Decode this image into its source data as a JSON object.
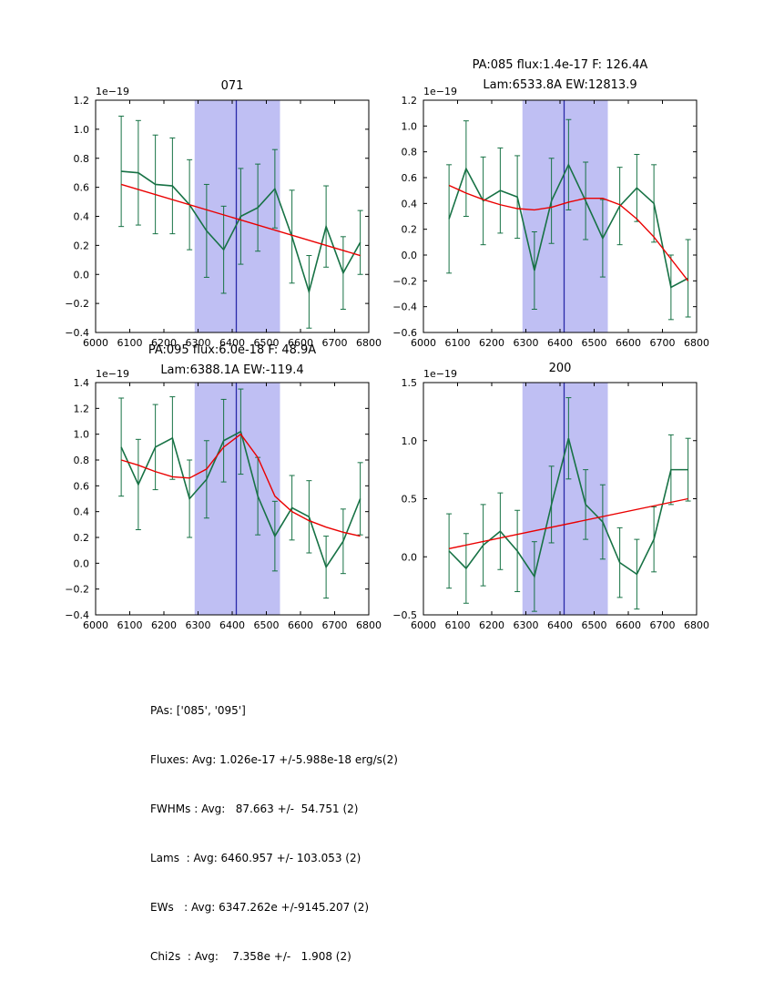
{
  "figure": {
    "background": "#ffffff",
    "colors": {
      "data": "#177245",
      "fit": "#ea0000",
      "band": "#8080e8",
      "band_opacity": 0.5,
      "center_line": "#2a2aa8",
      "axis": "#000000"
    }
  },
  "summary": {
    "lines": [
      "PAs: ['085', '095']",
      "Fluxes: Avg: 1.026e-17 +/-5.988e-18 erg/s(2)",
      "FWHMs : Avg:   87.663 +/-  54.751 (2)",
      "Lams  : Avg: 6460.957 +/- 103.053 (2)",
      "EWs   : Avg: 6347.262e +/-9145.207 (2)",
      "Chi2s  : Avg:    7.358e +/-   1.908 (2)"
    ]
  },
  "chart_data": [
    {
      "type": "line",
      "title_lines": [
        "071"
      ],
      "offset_text": "1e−19",
      "xlim": [
        6000,
        6800
      ],
      "ylim": [
        -0.4,
        1.2
      ],
      "xticks": [
        6000,
        6100,
        6200,
        6300,
        6400,
        6500,
        6600,
        6700,
        6800
      ],
      "yticks": [
        -0.4,
        -0.2,
        0,
        0.2,
        0.4,
        0.6,
        0.8,
        1.0,
        1.2
      ],
      "band": [
        6290,
        6540
      ],
      "center_line_x": 6412,
      "x": [
        6075,
        6125,
        6175,
        6225,
        6275,
        6325,
        6375,
        6425,
        6475,
        6525,
        6575,
        6625,
        6675,
        6725,
        6775
      ],
      "y": [
        0.71,
        0.7,
        0.62,
        0.61,
        0.48,
        0.3,
        0.17,
        0.4,
        0.46,
        0.59,
        0.26,
        -0.12,
        0.33,
        0.01,
        0.22
      ],
      "yerr": [
        0.38,
        0.36,
        0.34,
        0.33,
        0.31,
        0.32,
        0.3,
        0.33,
        0.3,
        0.27,
        0.32,
        0.25,
        0.28,
        0.25,
        0.22
      ],
      "fit_x": [
        6075,
        6775
      ],
      "fit_y": [
        0.62,
        0.13
      ]
    },
    {
      "type": "line",
      "title_lines": [
        "PA:085 flux:1.4e-17 F: 126.4A",
        "Lam:6533.8A EW:12813.9"
      ],
      "offset_text": "1e−19",
      "xlim": [
        6000,
        6800
      ],
      "ylim": [
        -0.6,
        1.2
      ],
      "xticks": [
        6000,
        6100,
        6200,
        6300,
        6400,
        6500,
        6600,
        6700,
        6800
      ],
      "yticks": [
        -0.6,
        -0.4,
        -0.2,
        0,
        0.2,
        0.4,
        0.6,
        0.8,
        1.0,
        1.2
      ],
      "band": [
        6290,
        6540
      ],
      "center_line_x": 6412,
      "x": [
        6075,
        6125,
        6175,
        6225,
        6275,
        6325,
        6375,
        6425,
        6475,
        6525,
        6575,
        6625,
        6675,
        6725,
        6775
      ],
      "y": [
        0.28,
        0.67,
        0.42,
        0.5,
        0.45,
        -0.12,
        0.42,
        0.7,
        0.42,
        0.13,
        0.38,
        0.52,
        0.4,
        -0.25,
        -0.18
      ],
      "yerr": [
        0.42,
        0.37,
        0.34,
        0.33,
        0.32,
        0.3,
        0.33,
        0.35,
        0.3,
        0.3,
        0.3,
        0.26,
        0.3,
        0.25,
        0.3
      ],
      "fit_x": [
        6075,
        6125,
        6175,
        6225,
        6275,
        6325,
        6375,
        6425,
        6475,
        6525,
        6575,
        6625,
        6675,
        6725,
        6775
      ],
      "fit_y": [
        0.54,
        0.48,
        0.43,
        0.39,
        0.36,
        0.35,
        0.37,
        0.41,
        0.44,
        0.44,
        0.39,
        0.28,
        0.14,
        -0.03,
        -0.2
      ]
    },
    {
      "type": "line",
      "title_lines": [
        "PA:095 flux:6.0e-18 F: 48.9A",
        "Lam:6388.1A EW:-119.4"
      ],
      "offset_text": "1e−19",
      "xlim": [
        6000,
        6800
      ],
      "ylim": [
        -0.4,
        1.4
      ],
      "xticks": [
        6000,
        6100,
        6200,
        6300,
        6400,
        6500,
        6600,
        6700,
        6800
      ],
      "yticks": [
        -0.4,
        -0.2,
        0,
        0.2,
        0.4,
        0.6,
        0.8,
        1.0,
        1.2,
        1.4
      ],
      "band": [
        6290,
        6540
      ],
      "center_line_x": 6412,
      "x": [
        6075,
        6125,
        6175,
        6225,
        6275,
        6325,
        6375,
        6425,
        6475,
        6525,
        6575,
        6625,
        6675,
        6725,
        6775
      ],
      "y": [
        0.9,
        0.61,
        0.9,
        0.97,
        0.5,
        0.65,
        0.95,
        1.02,
        0.52,
        0.21,
        0.43,
        0.36,
        -0.03,
        0.17,
        0.5
      ],
      "yerr": [
        0.38,
        0.35,
        0.33,
        0.32,
        0.3,
        0.3,
        0.32,
        0.33,
        0.3,
        0.27,
        0.25,
        0.28,
        0.24,
        0.25,
        0.28
      ],
      "fit_x": [
        6075,
        6125,
        6175,
        6225,
        6275,
        6325,
        6375,
        6425,
        6475,
        6525,
        6575,
        6625,
        6675,
        6725,
        6775
      ],
      "fit_y": [
        0.8,
        0.76,
        0.71,
        0.67,
        0.66,
        0.73,
        0.9,
        1.0,
        0.82,
        0.52,
        0.4,
        0.33,
        0.28,
        0.24,
        0.21
      ]
    },
    {
      "type": "line",
      "title_lines": [
        "200"
      ],
      "offset_text": "1e−19",
      "xlim": [
        6000,
        6800
      ],
      "ylim": [
        -0.5,
        1.5
      ],
      "xticks": [
        6000,
        6100,
        6200,
        6300,
        6400,
        6500,
        6600,
        6700,
        6800
      ],
      "yticks": [
        -0.5,
        0,
        0.5,
        1.0,
        1.5
      ],
      "band": [
        6290,
        6540
      ],
      "center_line_x": 6412,
      "x": [
        6075,
        6125,
        6175,
        6225,
        6275,
        6325,
        6375,
        6425,
        6475,
        6525,
        6575,
        6625,
        6675,
        6725,
        6775
      ],
      "y": [
        0.05,
        -0.1,
        0.1,
        0.22,
        0.05,
        -0.17,
        0.45,
        1.02,
        0.45,
        0.3,
        -0.05,
        -0.15,
        0.15,
        0.75,
        0.75
      ],
      "yerr": [
        0.32,
        0.3,
        0.35,
        0.33,
        0.35,
        0.3,
        0.33,
        0.35,
        0.3,
        0.32,
        0.3,
        0.3,
        0.28,
        0.3,
        0.27
      ],
      "fit_x": [
        6075,
        6775
      ],
      "fit_y": [
        0.07,
        0.5
      ]
    }
  ]
}
